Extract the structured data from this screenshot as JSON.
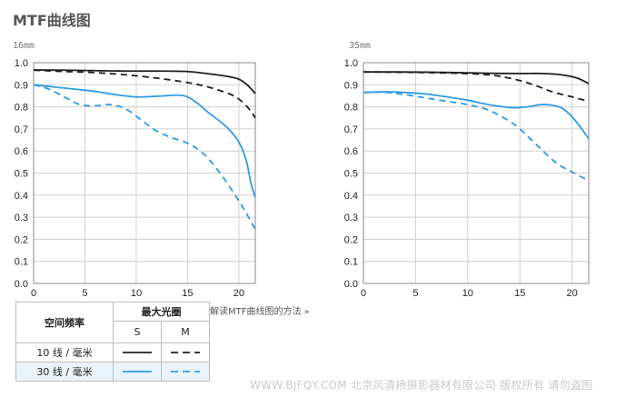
{
  "page_title": "MTF曲线图",
  "explain_link": "解读MTF曲线图的方法 »",
  "watermark": "WWW.BJFQY.COM 北京风清扬摄影器材有限公司 版权所有 请勿盗图",
  "colors": {
    "black": "#1f1f1f",
    "blue": "#2e9be6",
    "grid": "#cfcfcf",
    "axis": "#8a8a8a"
  },
  "legend": {
    "header_left": "空间频率",
    "header_right": "最大光圈",
    "col_s": "S",
    "col_m": "M",
    "row_10": "10 线 / 毫米",
    "row_30": "30 线 / 毫米"
  },
  "chart_data": [
    {
      "type": "line",
      "title": "16mm",
      "x_ticks": [
        0,
        5,
        10,
        15,
        20
      ],
      "y_ticks": [
        0,
        0.1,
        0.2,
        0.3,
        0.4,
        0.5,
        0.6,
        0.7,
        0.8,
        0.9,
        1.0
      ],
      "xlim": [
        0,
        21.6
      ],
      "ylim": [
        0,
        1.0
      ],
      "grid": true,
      "series": [
        {
          "freq": "10",
          "kind": "S",
          "color": "black",
          "dashed": false,
          "x": [
            0,
            3,
            6,
            9,
            12,
            15,
            17,
            19,
            20,
            20.8,
            21.6
          ],
          "y": [
            0.967,
            0.966,
            0.964,
            0.962,
            0.962,
            0.96,
            0.95,
            0.937,
            0.925,
            0.9,
            0.86
          ]
        },
        {
          "freq": "10",
          "kind": "M",
          "color": "black",
          "dashed": true,
          "x": [
            0,
            3,
            6,
            9,
            12,
            15,
            17,
            19,
            20,
            21,
            21.6
          ],
          "y": [
            0.966,
            0.96,
            0.955,
            0.945,
            0.93,
            0.91,
            0.89,
            0.86,
            0.835,
            0.79,
            0.75
          ]
        },
        {
          "freq": "30",
          "kind": "S",
          "color": "blue",
          "dashed": false,
          "x": [
            0,
            2,
            4,
            6,
            8,
            10,
            12,
            14,
            15,
            16,
            17,
            18,
            19,
            20,
            20.7,
            21.2,
            21.6
          ],
          "y": [
            0.9,
            0.89,
            0.88,
            0.87,
            0.855,
            0.845,
            0.848,
            0.853,
            0.845,
            0.815,
            0.775,
            0.74,
            0.7,
            0.64,
            0.56,
            0.45,
            0.39
          ]
        },
        {
          "freq": "30",
          "kind": "M",
          "color": "blue",
          "dashed": true,
          "x": [
            0,
            1.5,
            3,
            4.5,
            6,
            7.5,
            9,
            10.5,
            12,
            13.5,
            15,
            16.5,
            18,
            19.5,
            20.7,
            21.6
          ],
          "y": [
            0.9,
            0.88,
            0.845,
            0.81,
            0.805,
            0.81,
            0.79,
            0.74,
            0.69,
            0.66,
            0.635,
            0.59,
            0.51,
            0.41,
            0.32,
            0.245
          ]
        }
      ]
    },
    {
      "type": "line",
      "title": "35mm",
      "x_ticks": [
        0,
        5,
        10,
        15,
        20
      ],
      "y_ticks": [
        0,
        0.1,
        0.2,
        0.3,
        0.4,
        0.5,
        0.6,
        0.7,
        0.8,
        0.9,
        1.0
      ],
      "xlim": [
        0,
        21.6
      ],
      "ylim": [
        0,
        1.0
      ],
      "grid": true,
      "series": [
        {
          "freq": "10",
          "kind": "S",
          "color": "black",
          "dashed": false,
          "x": [
            0,
            3,
            6,
            9,
            12,
            15,
            17,
            19,
            20.5,
            21.6
          ],
          "y": [
            0.958,
            0.958,
            0.957,
            0.955,
            0.952,
            0.951,
            0.951,
            0.945,
            0.93,
            0.905
          ]
        },
        {
          "freq": "10",
          "kind": "M",
          "color": "black",
          "dashed": true,
          "x": [
            0,
            3,
            6,
            9,
            12,
            14,
            16,
            18,
            20,
            21.6
          ],
          "y": [
            0.958,
            0.957,
            0.955,
            0.952,
            0.945,
            0.93,
            0.905,
            0.87,
            0.845,
            0.825
          ]
        },
        {
          "freq": "30",
          "kind": "S",
          "color": "blue",
          "dashed": false,
          "x": [
            0,
            2,
            4,
            6,
            8,
            10,
            12,
            14,
            15,
            16,
            17,
            18,
            19,
            20,
            21,
            21.6
          ],
          "y": [
            0.865,
            0.868,
            0.865,
            0.858,
            0.845,
            0.83,
            0.81,
            0.797,
            0.797,
            0.802,
            0.81,
            0.808,
            0.795,
            0.755,
            0.695,
            0.655
          ]
        },
        {
          "freq": "30",
          "kind": "M",
          "color": "blue",
          "dashed": true,
          "x": [
            0,
            2,
            4,
            6,
            8,
            10,
            12,
            14,
            15,
            16,
            17,
            18,
            19,
            20,
            21,
            21.6
          ],
          "y": [
            0.865,
            0.866,
            0.855,
            0.84,
            0.825,
            0.81,
            0.785,
            0.735,
            0.7,
            0.655,
            0.61,
            0.565,
            0.53,
            0.505,
            0.48,
            0.465
          ]
        }
      ]
    }
  ]
}
